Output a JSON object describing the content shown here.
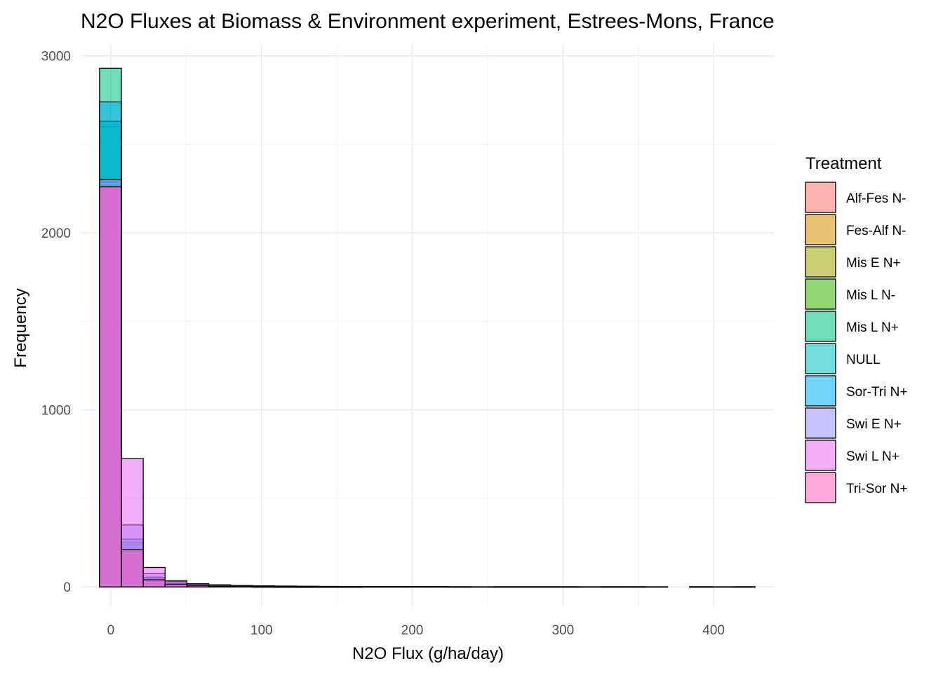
{
  "chart_data": {
    "type": "bar",
    "subtype": "histogram-overlaid",
    "title": "N2O Fluxes at Biomass & Environment experiment, Estrees-Mons, France",
    "xlabel": "N2O Flux (g/ha/day)",
    "ylabel": "Frequency",
    "xlim": [
      -20,
      440
    ],
    "ylim": [
      -110,
      3070
    ],
    "x_ticks": [
      0,
      100,
      200,
      300,
      400
    ],
    "x_tick_labels": [
      "0",
      "100",
      "200",
      "300",
      "400"
    ],
    "y_ticks": [
      0,
      1000,
      2000,
      3000
    ],
    "y_tick_labels": [
      "0",
      "1000",
      "2000",
      "3000"
    ],
    "grid": true,
    "legend": {
      "title": "Treatment",
      "placement": "right"
    },
    "bins": [
      [
        -7.5,
        7.0
      ],
      [
        7.0,
        21.5
      ],
      [
        21.5,
        36.0
      ],
      [
        36.0,
        50.5
      ],
      [
        50.5,
        65.0
      ],
      [
        65.0,
        79.5
      ],
      [
        79.5,
        94.0
      ],
      [
        94.0,
        108.5
      ],
      [
        108.5,
        123.0
      ],
      [
        123.0,
        137.5
      ],
      [
        137.5,
        152.0
      ],
      [
        152.0,
        166.5
      ],
      [
        166.5,
        181.0
      ],
      [
        181.0,
        195.5
      ],
      [
        195.5,
        210.0
      ],
      [
        210.0,
        224.5
      ],
      [
        224.5,
        239.0
      ],
      [
        239.0,
        253.5
      ],
      [
        253.5,
        268.0
      ],
      [
        268.0,
        282.5
      ],
      [
        282.5,
        297.0
      ],
      [
        297.0,
        311.5
      ],
      [
        311.5,
        326.0
      ],
      [
        326.0,
        340.5
      ],
      [
        340.5,
        355.0
      ],
      [
        355.0,
        369.5
      ],
      [
        369.5,
        384.0
      ],
      [
        384.0,
        398.5
      ],
      [
        398.5,
        413.0
      ],
      [
        413.0,
        427.5
      ]
    ],
    "series": [
      {
        "name": "Alf-Fes N-",
        "color": "#F8766D",
        "values": [
          2000,
          150,
          30,
          10,
          5,
          3,
          2,
          1,
          1,
          1,
          0,
          0,
          0,
          0,
          0,
          0,
          0,
          0,
          0,
          0,
          0,
          0,
          0,
          0,
          0,
          0,
          0,
          0,
          0,
          0
        ]
      },
      {
        "name": "Fes-Alf N-",
        "color": "#D89000",
        "values": [
          2100,
          160,
          35,
          12,
          6,
          3,
          2,
          1,
          1,
          0,
          0,
          0,
          0,
          0,
          0,
          0,
          0,
          0,
          0,
          0,
          0,
          0,
          0,
          0,
          0,
          0,
          0,
          0,
          0,
          0
        ]
      },
      {
        "name": "Mis E N+",
        "color": "#A3A500",
        "values": [
          2600,
          200,
          40,
          15,
          8,
          5,
          3,
          2,
          1,
          1,
          1,
          0,
          0,
          0,
          0,
          0,
          0,
          0,
          0,
          0,
          0,
          0,
          0,
          0,
          0,
          0,
          0,
          0,
          0,
          0
        ]
      },
      {
        "name": "Mis L N-",
        "color": "#39B600",
        "values": [
          2630,
          180,
          45,
          18,
          9,
          6,
          4,
          3,
          2,
          1,
          1,
          0,
          0,
          0,
          0,
          0,
          0,
          0,
          0,
          0,
          0,
          0,
          0,
          0,
          0,
          0,
          0,
          0,
          0,
          0
        ]
      },
      {
        "name": "Mis L N+",
        "color": "#00BF7D",
        "values": [
          2930,
          250,
          50,
          20,
          10,
          6,
          4,
          3,
          2,
          1,
          1,
          1,
          0,
          0,
          0,
          0,
          0,
          0,
          0,
          0,
          0,
          0,
          0,
          0,
          0,
          0,
          0,
          0,
          0,
          0
        ]
      },
      {
        "name": "NULL",
        "color": "#00BFC4",
        "values": [
          2630,
          210,
          45,
          16,
          8,
          5,
          3,
          2,
          1,
          1,
          0,
          0,
          0,
          0,
          0,
          0,
          0,
          0,
          0,
          0,
          0,
          0,
          0,
          0,
          0,
          0,
          0,
          0,
          0,
          0
        ]
      },
      {
        "name": "Sor-Tri N+",
        "color": "#00B0F6",
        "values": [
          2740,
          270,
          55,
          22,
          12,
          8,
          5,
          4,
          3,
          2,
          1,
          1,
          0,
          0,
          0,
          0,
          0,
          0,
          0,
          0,
          0,
          0,
          0,
          0,
          0,
          0,
          0,
          0,
          0,
          0
        ]
      },
      {
        "name": "Swi E N+",
        "color": "#9590FF",
        "values": [
          2300,
          350,
          75,
          30,
          15,
          10,
          7,
          5,
          3,
          2,
          2,
          1,
          1,
          1,
          1,
          1,
          1,
          0,
          1,
          1,
          1,
          1,
          0,
          1,
          1,
          0,
          0,
          1,
          0,
          1
        ]
      },
      {
        "name": "Swi L N+",
        "color": "#E76BF3",
        "values": [
          2260,
          725,
          110,
          35,
          18,
          12,
          8,
          6,
          5,
          4,
          3,
          2,
          2,
          2,
          2,
          2,
          1,
          1,
          1,
          1,
          1,
          1,
          1,
          1,
          1,
          1,
          0,
          1,
          1,
          1
        ]
      },
      {
        "name": "Tri-Sor N+",
        "color": "#FF62BC",
        "values": [
          2260,
          210,
          40,
          15,
          7,
          4,
          3,
          2,
          1,
          1,
          1,
          1,
          0,
          0,
          0,
          0,
          0,
          0,
          0,
          0,
          0,
          0,
          0,
          0,
          0,
          0,
          0,
          0,
          0,
          0
        ]
      }
    ]
  }
}
